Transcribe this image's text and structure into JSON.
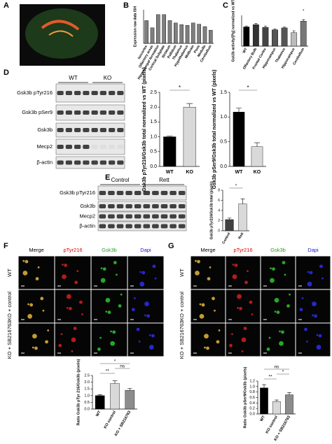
{
  "panel_letters": [
    "A",
    "B",
    "C",
    "D",
    "E",
    "F",
    "G"
  ],
  "blot_d": {
    "groups": [
      "WT",
      "KO"
    ],
    "rows": [
      "Gsk3b pTyr216",
      "Gsk3b pSer9",
      "Gsk3b",
      "Mecp2",
      "β-actin"
    ]
  },
  "blot_e": {
    "groups": [
      "Control",
      "Rett"
    ],
    "rows": [
      "Gsk3b pTyr216",
      "Gsk3b",
      "Mecp2",
      "β-actin"
    ]
  },
  "micro_f": {
    "columns": [
      "Merge",
      "pTyr216",
      "Gsk3b",
      "Dapi"
    ],
    "rows": [
      "WT",
      "KO + control",
      "KO + SB216763"
    ]
  },
  "micro_g": {
    "columns": [
      "Merge",
      "pTyr216",
      "Gsk3b",
      "Dapi"
    ],
    "rows": [
      "WT",
      "KO + control",
      "KO + SB216763"
    ]
  },
  "chart_data": [
    {
      "type": "bar",
      "ylabel": "Expression raw data ISH",
      "categories": [
        "Isocortex",
        "Olfactory areas",
        "Hippocampal formation",
        "Cortical Subplate",
        "Striatum",
        "Pallidum",
        "Thalamus",
        "Hypothalamus",
        "Midbrain",
        "Pons",
        "Medulla",
        "Cerebellum"
      ],
      "values": [
        95,
        65,
        120,
        120,
        95,
        85,
        78,
        75,
        85,
        80,
        70,
        55
      ],
      "color": "#7f7f7f",
      "ylim": [
        0,
        140
      ]
    },
    {
      "type": "bar",
      "ylabel": "Gsk3b activity/[Pg] normalized vs WT",
      "categories": [
        "WT",
        "Olfactory Bulb",
        "Frontal Cortex",
        "Hippocampus",
        "Thalamus",
        "Hippocampus",
        "Cerebellum"
      ],
      "values": [
        1,
        1.12,
        0.98,
        0.85,
        0.95,
        0.7,
        1.3
      ],
      "errors": [
        0.05,
        0.06,
        0.07,
        0.04,
        0.05,
        0.1,
        0.08
      ],
      "colors": [
        "#000000",
        "#333333",
        "#444444",
        "#555555",
        "#555555",
        "#bbbbbb",
        "#777777"
      ],
      "ylim": [
        0,
        1.6
      ],
      "annotations": [
        "*"
      ]
    },
    {
      "type": "bar",
      "ylabel": "Gsk3b pTyr216/Gsk3b total normalized vs WT (pixels)",
      "categories": [
        "WT",
        "KO"
      ],
      "values": [
        1,
        2.0
      ],
      "errors": [
        0.02,
        0.12
      ],
      "colors": [
        "#000000",
        "#d9d9d9"
      ],
      "ylim": [
        0,
        2.5
      ],
      "yticks": [
        {
          "value": 0,
          "label": "0.0"
        },
        0.5,
        {
          "value": 1,
          "label": "1.0"
        },
        1.5,
        {
          "value": 2,
          "label": "2.0"
        },
        2.5
      ],
      "annotations": [
        "*"
      ]
    },
    {
      "type": "bar",
      "ylabel": "Gsk3b pSer9/Gsk3b total normalized vs WT (pixels)",
      "categories": [
        "WT",
        "KO"
      ],
      "values": [
        1.1,
        0.4
      ],
      "errors": [
        0.08,
        0.08
      ],
      "colors": [
        "#000000",
        "#d9d9d9"
      ],
      "ylim": [
        0,
        1.5
      ],
      "yticks": [
        {
          "value": 0,
          "label": "0.0"
        },
        0.5,
        {
          "value": 1,
          "label": "1.0"
        },
        1.5
      ],
      "annotations": [
        "*"
      ]
    },
    {
      "type": "bar",
      "ylabel": "Gsk3b pTyr216/Gsk3b total (pixels)",
      "categories": [
        "Control",
        "Rett"
      ],
      "values": [
        2.2,
        5.3
      ],
      "errors": [
        0.3,
        1.0
      ],
      "colors": [
        "#404040",
        "#d9d9d9"
      ],
      "ylim": [
        0,
        8
      ],
      "yticks": [
        0,
        2,
        4,
        6,
        8
      ],
      "annotations": [
        "*"
      ]
    },
    {
      "type": "bar",
      "ylabel": "Ratio Gsk3b pTyr 216/Gsk3b (pixels)",
      "categories": [
        "WT",
        "KO control",
        "KO + SB216763"
      ],
      "values": [
        1.0,
        1.9,
        1.4
      ],
      "errors": [
        0.07,
        0.2,
        0.15
      ],
      "colors": [
        "#000000",
        "#d9d9d9",
        "#8c8c8c"
      ],
      "ylim": [
        0,
        2.5
      ],
      "yticks": [
        {
          "value": 0,
          "label": "0.0"
        },
        0.5,
        {
          "value": 1,
          "label": "1.0"
        },
        1.5,
        {
          "value": 2,
          "label": "2.0"
        },
        2.5
      ],
      "annotations": [
        "*",
        "**",
        "ns"
      ]
    },
    {
      "type": "bar",
      "ylabel": "Ratio Gsk3b pSer9/Gsk3b (pixels)",
      "categories": [
        "WT",
        "KO control",
        "KO + SB216763"
      ],
      "values": [
        0.95,
        0.45,
        0.7
      ],
      "errors": [
        0.12,
        0.06,
        0.08
      ],
      "colors": [
        "#000000",
        "#d9d9d9",
        "#8c8c8c"
      ],
      "ylim": [
        0,
        1.2
      ],
      "yticks": [
        {
          "value": 0,
          "label": "0.0"
        },
        0.2,
        0.4,
        0.6,
        0.8,
        {
          "value": 1,
          "label": "1.0"
        },
        1.2
      ],
      "annotations": [
        "ns",
        "**",
        "*"
      ]
    }
  ]
}
